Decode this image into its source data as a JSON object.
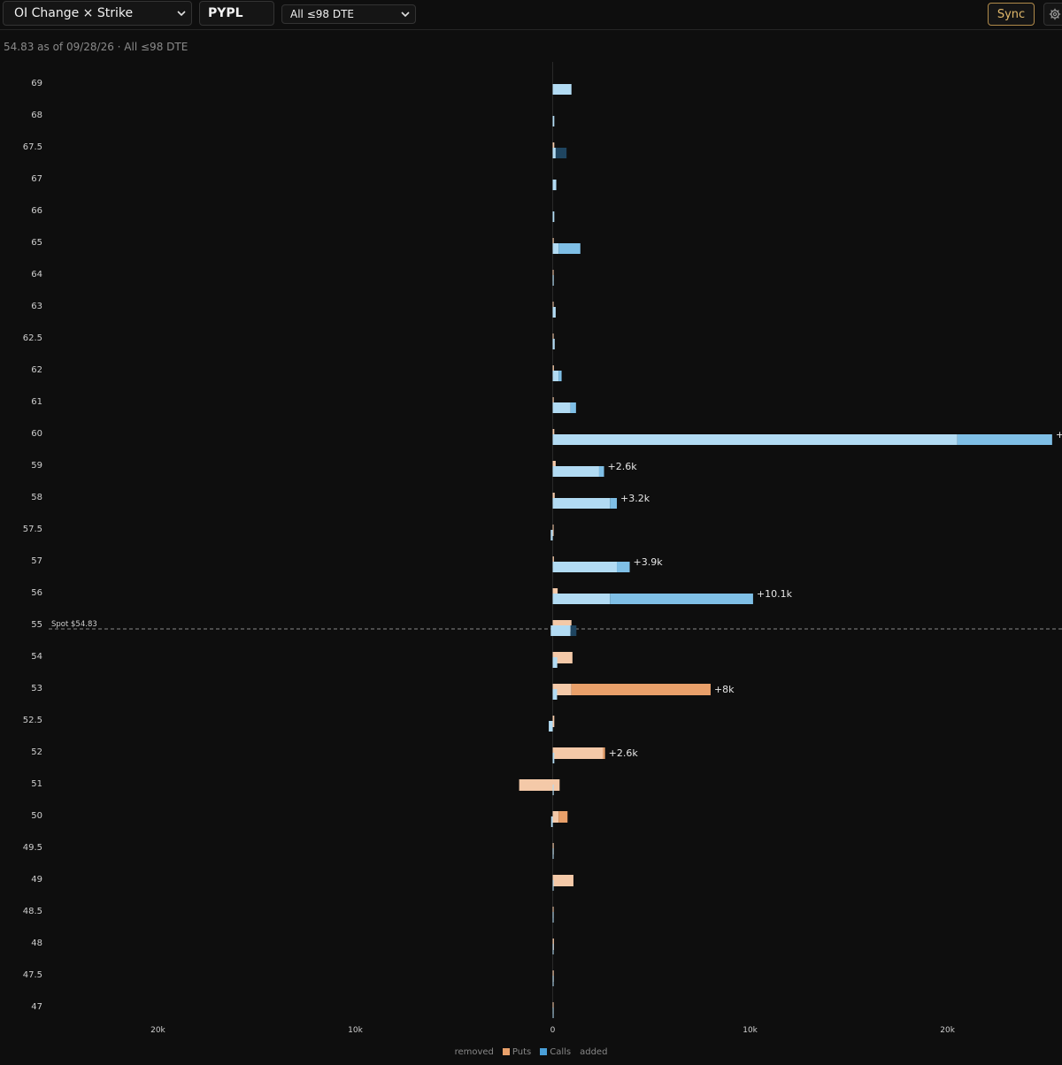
{
  "toolbar": {
    "view_select": "OI Change × Strike",
    "ticker": "PYPL",
    "dte_select": "All ≤98 DTE",
    "sync_label": "Sync"
  },
  "subtitle": "54.83 as of 09/28/26 · All ≤98 DTE",
  "legend": {
    "removed": "removed",
    "puts": "Puts",
    "calls": "Calls",
    "added": "added"
  },
  "colors": {
    "background": "#0e0e0e",
    "calls_existing": "#b2dbf3",
    "calls_added": "#7fbfe6",
    "calls_removed": "#1f4560",
    "puts_existing": "#f4c9a8",
    "puts_added": "#e9a06a",
    "puts_removed": "#b46a34",
    "spot_line": "#888888"
  },
  "chart_data": {
    "type": "bar",
    "orientation": "horizontal",
    "spot_label": "Spot $54.83",
    "spot": 54.83,
    "x_ticks": [
      "20k",
      "10k",
      "0",
      "10k",
      "20k"
    ],
    "x_tick_values": [
      -20000,
      -10000,
      0,
      10000,
      20000
    ],
    "xlim": [
      -28000,
      25800
    ],
    "strikes": [
      "69",
      "68",
      "67.5",
      "67",
      "66",
      "65",
      "64",
      "63",
      "62.5",
      "62",
      "61",
      "60",
      "59",
      "58",
      "57.5",
      "57",
      "56",
      "55",
      "54",
      "53",
      "52.5",
      "52",
      "51",
      "50",
      "49.5",
      "49",
      "48.5",
      "48",
      "47.5",
      "47"
    ],
    "series": [
      {
        "name": "Calls",
        "segments": [
          [
            [
              0,
              950
            ]
          ],
          [
            [
              0,
              80
            ]
          ],
          [
            [
              0,
              150
            ],
            [
              150,
              700,
              "removed"
            ]
          ],
          [
            [
              0,
              180
            ]
          ],
          [
            [
              0,
              80
            ]
          ],
          [
            [
              0,
              300
            ],
            [
              300,
              1400
            ]
          ],
          [
            [
              0,
              50
            ]
          ],
          [
            [
              0,
              150
            ]
          ],
          [
            [
              0,
              100
            ]
          ],
          [
            [
              0,
              300
            ],
            [
              300,
              450
            ]
          ],
          [
            [
              0,
              900
            ],
            [
              900,
              1180
            ]
          ],
          [
            [
              0,
              20500
            ],
            [
              20500,
              25300
            ]
          ],
          [
            [
              0,
              2350
            ],
            [
              2350,
              2600
            ]
          ],
          [
            [
              0,
              2900
            ],
            [
              2900,
              3250
            ]
          ],
          [
            [
              -100,
              0
            ]
          ],
          [
            [
              0,
              3250
            ],
            [
              3250,
              3900
            ]
          ],
          [
            [
              0,
              2900
            ],
            [
              2900,
              10150
            ]
          ],
          [
            [
              -100,
              900
            ],
            [
              900,
              1200,
              "removed"
            ]
          ],
          [
            [
              0,
              230
            ]
          ],
          [
            [
              0,
              220
            ]
          ],
          [
            [
              -200,
              0
            ]
          ],
          [
            [
              0,
              80
            ]
          ],
          [
            [
              0,
              50
            ]
          ],
          [
            [
              -80,
              0
            ]
          ],
          [
            [
              0,
              30
            ]
          ],
          [
            [
              0,
              40
            ]
          ],
          [
            [
              0,
              30
            ]
          ],
          [
            [
              0,
              30
            ]
          ],
          [
            [
              0,
              30
            ]
          ],
          [
            [
              0,
              40
            ]
          ]
        ]
      },
      {
        "name": "Puts",
        "segments": [
          [],
          [],
          [
            [
              0,
              80
            ]
          ],
          [],
          [],
          [
            [
              0,
              50
            ]
          ],
          [
            [
              0,
              30
            ]
          ],
          [
            [
              0,
              30
            ]
          ],
          [
            [
              0,
              40
            ]
          ],
          [
            [
              0,
              60
            ]
          ],
          [
            [
              0,
              50
            ]
          ],
          [
            [
              0,
              80
            ]
          ],
          [
            [
              0,
              150
            ]
          ],
          [
            [
              0,
              100
            ]
          ],
          [
            [
              0,
              40
            ]
          ],
          [
            [
              0,
              60
            ]
          ],
          [
            [
              0,
              250
            ]
          ],
          [
            [
              0,
              950
            ]
          ],
          [
            [
              0,
              1000
            ]
          ],
          [
            [
              0,
              950
            ],
            [
              950,
              8000
            ]
          ],
          [
            [
              0,
              80
            ]
          ],
          [
            [
              0,
              2550
            ],
            [
              2550,
              2650
            ]
          ],
          [
            [
              -1700,
              350
            ]
          ],
          [
            [
              0,
              300
            ],
            [
              300,
              750
            ]
          ],
          [
            [
              0,
              50
            ]
          ],
          [
            [
              0,
              1050
            ]
          ],
          [
            [
              0,
              30
            ]
          ],
          [
            [
              0,
              60
            ]
          ],
          [
            [
              0,
              50
            ]
          ],
          [
            [
              0,
              30
            ]
          ]
        ]
      }
    ],
    "value_labels": [
      {
        "strike": "60",
        "text": "+"
      },
      {
        "strike": "59",
        "text": "+2.6k"
      },
      {
        "strike": "58",
        "text": "+3.2k"
      },
      {
        "strike": "57",
        "text": "+3.9k"
      },
      {
        "strike": "56",
        "text": "+10.1k"
      },
      {
        "strike": "53",
        "text": "+8k"
      },
      {
        "strike": "52",
        "text": "+2.6k"
      }
    ]
  }
}
